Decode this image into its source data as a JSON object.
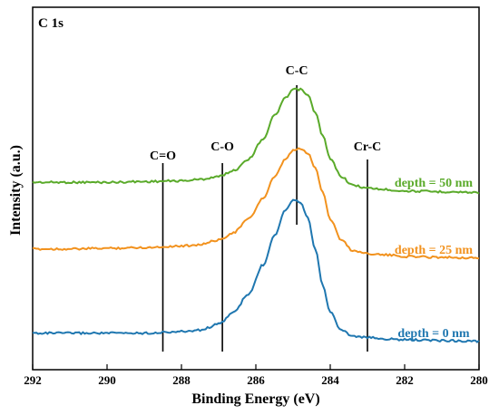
{
  "chart_data": {
    "type": "line",
    "title": "",
    "panel_label": "C 1s",
    "xlabel": "Binding Energy (eV)",
    "ylabel": "Intensity (a.u.)",
    "xlim": [
      292,
      280
    ],
    "x_reversed": true,
    "x_ticks": [
      "292",
      "290",
      "288",
      "286",
      "284",
      "282",
      "280"
    ],
    "y_ticks_shown": false,
    "grid": false,
    "series": [
      {
        "name": "depth = 50 nm",
        "color": "#5aaa2a",
        "x": [
          292,
          291,
          290,
          289,
          288,
          287.5,
          287,
          286.6,
          286.2,
          285.8,
          285.5,
          285.2,
          285,
          284.8,
          284.6,
          284.4,
          284.2,
          284,
          283.7,
          283.4,
          283,
          282.5,
          282,
          281,
          280
        ],
        "y": [
          0.08,
          0.08,
          0.08,
          0.085,
          0.09,
          0.1,
          0.12,
          0.16,
          0.24,
          0.38,
          0.54,
          0.66,
          0.72,
          0.72,
          0.68,
          0.56,
          0.4,
          0.24,
          0.12,
          0.06,
          0.04,
          0.03,
          0.02,
          0.015,
          0.01
        ]
      },
      {
        "name": "depth = 25 nm",
        "color": "#f2921e",
        "x": [
          292,
          291,
          290,
          289,
          288,
          287.5,
          287,
          286.6,
          286.2,
          285.8,
          285.5,
          285.2,
          285,
          284.8,
          284.6,
          284.4,
          284.2,
          284,
          283.7,
          283.4,
          283,
          282.5,
          282,
          281,
          280
        ],
        "y": [
          0.08,
          0.08,
          0.085,
          0.09,
          0.1,
          0.11,
          0.14,
          0.19,
          0.28,
          0.42,
          0.56,
          0.68,
          0.74,
          0.75,
          0.72,
          0.62,
          0.46,
          0.28,
          0.14,
          0.07,
          0.05,
          0.04,
          0.03,
          0.025,
          0.02
        ]
      },
      {
        "name": "depth = 0 nm",
        "color": "#1f77b0",
        "x": [
          292,
          291,
          290,
          289,
          288,
          287.5,
          287,
          286.6,
          286.2,
          285.8,
          285.5,
          285.2,
          285,
          284.8,
          284.6,
          284.4,
          284.2,
          284,
          283.7,
          283.4,
          283,
          282.5,
          282,
          281,
          280
        ],
        "y": [
          0.1,
          0.1,
          0.1,
          0.1,
          0.11,
          0.12,
          0.16,
          0.24,
          0.36,
          0.56,
          0.76,
          0.93,
          1.0,
          0.98,
          0.88,
          0.66,
          0.42,
          0.24,
          0.12,
          0.08,
          0.07,
          0.06,
          0.055,
          0.05,
          0.045
        ]
      }
    ],
    "reference_lines": [
      {
        "label": "C=O",
        "x": 288.5
      },
      {
        "label": "C-O",
        "x": 286.9
      },
      {
        "label": "C-C",
        "x": 284.9
      },
      {
        "label": "Cr-C",
        "x": 283.0
      }
    ]
  }
}
